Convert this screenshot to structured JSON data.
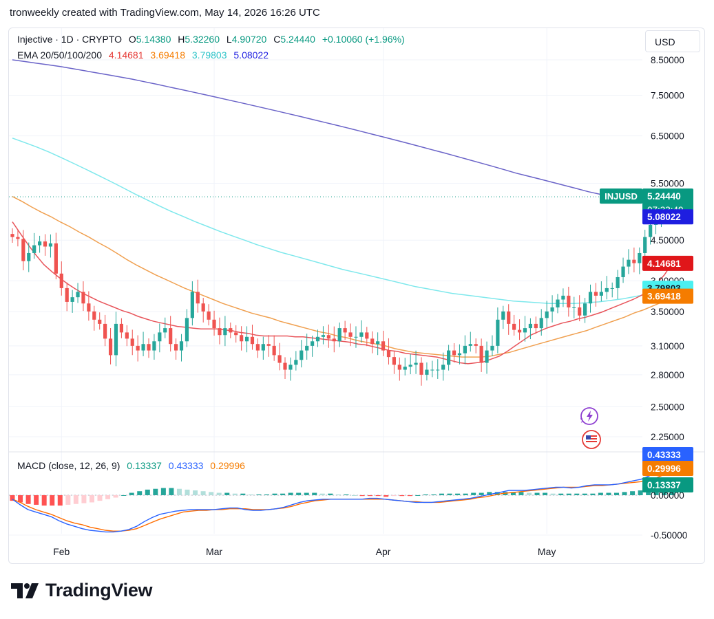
{
  "caption": "tronweekly created with TradingView.com, May 14, 2026 16:26 UTC",
  "legend": {
    "symbol": "Injective · 1D · CRYPTO",
    "o_label": "O",
    "o_value": "5.14380",
    "h_label": "H",
    "h_value": "5.32260",
    "l_label": "L",
    "l_value": "4.90720",
    "c_label": "C",
    "c_value": "5.24440",
    "change": "+0.10060 (+1.96%)",
    "ema_label": "EMA 20/50/100/200",
    "ema20": "4.14681",
    "ema50": "3.69418",
    "ema100": "3.79803",
    "ema200": "5.08022"
  },
  "currency_button": "USD",
  "macd_legend": {
    "label": "MACD (close, 12, 26, 9)",
    "hist": "0.13337",
    "macd": "0.43333",
    "signal": "0.29996"
  },
  "footer_brand": "TradingView",
  "colors": {
    "up": "#26a69a",
    "down": "#ef5350",
    "ema20": "#e8545a",
    "ema50": "#f0a050",
    "ema100": "#7ee8ec",
    "ema200": "#6a63c8",
    "macd": "#2962ff",
    "signal": "#ff6d00",
    "hist_up": "#26a69a",
    "hist_up_fading": "#b2dfdb",
    "hist_down": "#ff5252",
    "hist_down_fading": "#ffcdd2"
  },
  "chart_data": {
    "type": "candlestick",
    "price_axis": {
      "ticks": [
        "8.50000",
        "7.50000",
        "6.50000",
        "5.50000",
        "4.50000",
        "3.90000",
        "3.50000",
        "3.10000",
        "2.80000",
        "2.50000",
        "2.25000"
      ],
      "tick_values": [
        8.5,
        7.5,
        6.5,
        5.5,
        4.5,
        3.9,
        3.5,
        3.1,
        2.8,
        2.5,
        2.25
      ],
      "scale": "log"
    },
    "macd_axis": {
      "ticks": [
        "0.00000",
        "-0.50000"
      ],
      "tick_values": [
        0,
        -0.5
      ]
    },
    "x_labels": [
      {
        "label": "Feb",
        "index": 9
      },
      {
        "label": "Mar",
        "index": 37
      },
      {
        "label": "Apr",
        "index": 68
      },
      {
        "label": "May",
        "index": 98
      }
    ],
    "price_badges": [
      {
        "label": "INJUSD",
        "value": "5.24440",
        "countdown": "07:33:49",
        "price": 5.2444,
        "color": "#089981"
      },
      {
        "value": "5.08022",
        "price": 5.08022,
        "color": "#1e1ee0"
      },
      {
        "value": "4.14681",
        "price": 4.14681,
        "color": "#e0161a"
      },
      {
        "value": "3.79803",
        "price": 3.79803,
        "color": "#4af0f0"
      },
      {
        "value": "3.69418",
        "price": 3.69418,
        "color": "#f57c00"
      }
    ],
    "macd_badges": [
      {
        "value": "0.43333",
        "val": 0.43333,
        "color": "#2962ff"
      },
      {
        "value": "0.29996",
        "val": 0.29996,
        "color": "#f57c00"
      },
      {
        "value": "0.13337",
        "val": 0.13337,
        "color": "#089981"
      }
    ],
    "last_price": 5.2444,
    "candles_c": [
      4.55,
      4.52,
      4.18,
      4.3,
      4.42,
      4.48,
      4.4,
      4.45,
      4.0,
      3.8,
      3.62,
      3.68,
      3.75,
      3.6,
      3.5,
      3.4,
      3.35,
      3.18,
      3.0,
      3.35,
      3.25,
      3.18,
      3.1,
      3.05,
      3.12,
      3.05,
      3.15,
      3.25,
      3.3,
      3.12,
      3.05,
      3.15,
      3.42,
      3.75,
      3.6,
      3.5,
      3.4,
      3.3,
      3.22,
      3.3,
      3.25,
      3.22,
      3.15,
      3.2,
      3.12,
      3.05,
      3.12,
      3.1,
      3.0,
      2.92,
      2.85,
      2.9,
      2.95,
      3.05,
      3.1,
      3.15,
      3.2,
      3.22,
      3.18,
      3.15,
      3.3,
      3.25,
      3.2,
      3.2,
      3.25,
      3.18,
      3.12,
      3.15,
      3.05,
      2.98,
      2.9,
      2.85,
      2.88,
      2.9,
      2.92,
      2.8,
      2.85,
      2.85,
      2.85,
      2.9,
      3.05,
      3.0,
      3.02,
      3.1,
      3.12,
      3.1,
      2.92,
      3.05,
      3.1,
      3.4,
      3.5,
      3.35,
      3.28,
      3.25,
      3.3,
      3.35,
      3.3,
      3.42,
      3.5,
      3.55,
      3.65,
      3.7,
      3.55,
      3.55,
      3.45,
      3.6,
      3.75,
      3.7,
      3.75,
      3.8,
      3.8,
      3.95,
      4.1,
      4.2,
      4.15,
      4.3,
      4.55,
      4.75,
      4.9,
      5.12,
      5.14,
      5.2444
    ],
    "candles_o_first": 4.6,
    "ema20": [
      4.8,
      4.61,
      4.43,
      4.27,
      4.13,
      4.03,
      3.94,
      3.86,
      3.79,
      3.73,
      3.68,
      3.63,
      3.59,
      3.55,
      3.51,
      3.48,
      3.44,
      3.41,
      3.38,
      3.36,
      3.34,
      3.32,
      3.31,
      3.3,
      3.29,
      3.29,
      3.29,
      3.28,
      3.27,
      3.25,
      3.24,
      3.22,
      3.21,
      3.21,
      3.21,
      3.21,
      3.2,
      3.2,
      3.19,
      3.18,
      3.17,
      3.16,
      3.15,
      3.14,
      3.12,
      3.11,
      3.09,
      3.07,
      3.05,
      3.04,
      3.02,
      3.01,
      3.0,
      2.99,
      2.98,
      2.96,
      2.94,
      2.92,
      2.91,
      2.92,
      2.93,
      2.96,
      2.99,
      3.04,
      3.1,
      3.16,
      3.22,
      3.26,
      3.3,
      3.33,
      3.36,
      3.38,
      3.41,
      3.43,
      3.46,
      3.49,
      3.53,
      3.57,
      3.61,
      3.65,
      3.7,
      3.76,
      3.86,
      3.98,
      4.15
    ],
    "ema20_start_index": 0,
    "ema50": [
      5.25,
      5.16,
      5.06,
      4.97,
      4.89,
      4.8,
      4.72,
      4.63,
      4.55,
      4.46,
      4.38,
      4.29,
      4.2,
      4.12,
      4.05,
      3.98,
      3.92,
      3.86,
      3.8,
      3.75,
      3.7,
      3.65,
      3.6,
      3.56,
      3.52,
      3.48,
      3.45,
      3.42,
      3.38,
      3.35,
      3.32,
      3.29,
      3.26,
      3.24,
      3.21,
      3.19,
      3.16,
      3.14,
      3.12,
      3.1,
      3.07,
      3.05,
      3.03,
      3.02,
      3.01,
      3.0,
      2.99,
      2.98,
      2.98,
      2.98,
      2.99,
      3.01,
      3.03,
      3.06,
      3.09,
      3.12,
      3.15,
      3.18,
      3.21,
      3.24,
      3.27,
      3.31,
      3.35,
      3.39,
      3.43,
      3.48,
      3.52,
      3.57,
      3.62,
      3.69
    ],
    "ema100": [
      6.45,
      6.35,
      6.25,
      6.14,
      6.02,
      5.9,
      5.78,
      5.66,
      5.54,
      5.42,
      5.3,
      5.19,
      5.08,
      4.98,
      4.89,
      4.8,
      4.72,
      4.64,
      4.57,
      4.5,
      4.43,
      4.37,
      4.31,
      4.26,
      4.21,
      4.16,
      4.11,
      4.06,
      4.02,
      3.98,
      3.94,
      3.9,
      3.86,
      3.82,
      3.79,
      3.76,
      3.73,
      3.71,
      3.69,
      3.67,
      3.65,
      3.63,
      3.62,
      3.61,
      3.6,
      3.6,
      3.6,
      3.61,
      3.62,
      3.64,
      3.66,
      3.69,
      3.72,
      3.75,
      3.8
    ],
    "ema200": [
      8.5,
      8.45,
      8.4,
      8.35,
      8.3,
      8.24,
      8.18,
      8.12,
      8.06,
      8.0,
      7.94,
      7.87,
      7.8,
      7.73,
      7.66,
      7.59,
      7.52,
      7.45,
      7.38,
      7.31,
      7.24,
      7.17,
      7.1,
      7.03,
      6.96,
      6.89,
      6.82,
      6.75,
      6.68,
      6.61,
      6.54,
      6.47,
      6.4,
      6.33,
      6.26,
      6.19,
      6.12,
      6.05,
      5.98,
      5.91,
      5.84,
      5.77,
      5.7,
      5.64,
      5.58,
      5.52,
      5.46,
      5.4,
      5.34,
      5.29,
      5.24,
      5.19,
      5.15,
      5.12,
      5.09,
      5.08
    ],
    "macd": [
      -0.05,
      -0.12,
      -0.18,
      -0.21,
      -0.24,
      -0.27,
      -0.32,
      -0.36,
      -0.39,
      -0.42,
      -0.44,
      -0.45,
      -0.46,
      -0.46,
      -0.45,
      -0.43,
      -0.39,
      -0.33,
      -0.28,
      -0.24,
      -0.22,
      -0.2,
      -0.19,
      -0.18,
      -0.18,
      -0.18,
      -0.18,
      -0.17,
      -0.16,
      -0.16,
      -0.18,
      -0.19,
      -0.19,
      -0.18,
      -0.17,
      -0.15,
      -0.12,
      -0.09,
      -0.07,
      -0.06,
      -0.05,
      -0.05,
      -0.05,
      -0.05,
      -0.05,
      -0.05,
      -0.04,
      -0.04,
      -0.05,
      -0.06,
      -0.07,
      -0.08,
      -0.09,
      -0.09,
      -0.09,
      -0.08,
      -0.07,
      -0.06,
      -0.05,
      -0.04,
      -0.02,
      0.0,
      0.02,
      0.04,
      0.06,
      0.06,
      0.06,
      0.07,
      0.08,
      0.09,
      0.1,
      0.1,
      0.09,
      0.1,
      0.12,
      0.13,
      0.13,
      0.13,
      0.14,
      0.16,
      0.18,
      0.2,
      0.24,
      0.3,
      0.36,
      0.43
    ],
    "signal": [
      -0.05,
      -0.09,
      -0.14,
      -0.18,
      -0.21,
      -0.24,
      -0.28,
      -0.32,
      -0.35,
      -0.37,
      -0.4,
      -0.42,
      -0.44,
      -0.45,
      -0.45,
      -0.44,
      -0.42,
      -0.38,
      -0.34,
      -0.3,
      -0.27,
      -0.24,
      -0.21,
      -0.2,
      -0.19,
      -0.19,
      -0.18,
      -0.18,
      -0.17,
      -0.17,
      -0.17,
      -0.18,
      -0.18,
      -0.18,
      -0.17,
      -0.16,
      -0.14,
      -0.11,
      -0.09,
      -0.07,
      -0.06,
      -0.05,
      -0.05,
      -0.05,
      -0.05,
      -0.05,
      -0.05,
      -0.05,
      -0.05,
      -0.06,
      -0.07,
      -0.08,
      -0.08,
      -0.09,
      -0.09,
      -0.09,
      -0.08,
      -0.07,
      -0.06,
      -0.05,
      -0.03,
      -0.02,
      0.0,
      0.02,
      0.03,
      0.04,
      0.05,
      0.06,
      0.07,
      0.08,
      0.09,
      0.1,
      0.1,
      0.1,
      0.11,
      0.12,
      0.12,
      0.13,
      0.14,
      0.15,
      0.16,
      0.17,
      0.19,
      0.22,
      0.26,
      0.3
    ],
    "histogram": [
      -0.07,
      -0.09,
      -0.11,
      -0.12,
      -0.13,
      -0.13,
      -0.13,
      -0.12,
      -0.11,
      -0.1,
      -0.09,
      -0.07,
      -0.05,
      -0.03,
      0.0,
      0.03,
      0.05,
      0.07,
      0.08,
      0.09,
      0.09,
      0.08,
      0.07,
      0.06,
      0.05,
      0.04,
      0.03,
      0.03,
      0.02,
      0.02,
      0.01,
      0.01,
      0.01,
      0.02,
      0.02,
      0.03,
      0.03,
      0.03,
      0.03,
      0.02,
      0.02,
      0.01,
      0.01,
      0.0,
      -0.01,
      -0.01,
      -0.01,
      -0.02,
      -0.01,
      -0.01,
      -0.01,
      0.0,
      0.01,
      0.01,
      0.02,
      0.02,
      0.02,
      0.02,
      0.03,
      0.03,
      0.04,
      0.04,
      0.04,
      0.04,
      0.04,
      0.03,
      0.03,
      0.03,
      0.02,
      0.02,
      0.02,
      0.02,
      0.02,
      0.02,
      0.03,
      0.03,
      0.03,
      0.04,
      0.05,
      0.06,
      0.08,
      0.1,
      0.12,
      0.13
    ],
    "histogram_start_index": 0
  }
}
